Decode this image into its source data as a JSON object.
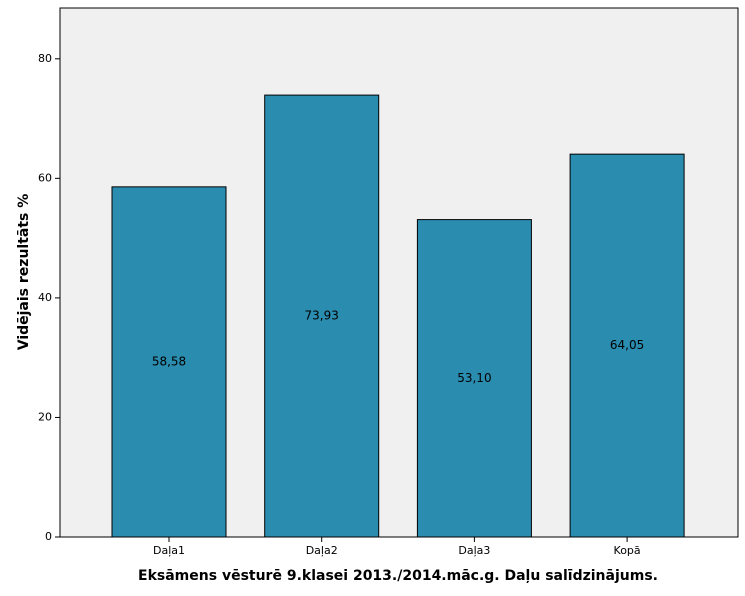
{
  "chart_data": {
    "type": "bar",
    "categories": [
      "Daļa1",
      "Daļa2",
      "Daļa3",
      "Kopā"
    ],
    "values": [
      58.58,
      73.93,
      53.1,
      64.05
    ],
    "value_labels": [
      "58,58",
      "73,93",
      "53,10",
      "64,05"
    ],
    "color": "#2a8caf",
    "ylim": [
      0,
      88.5
    ],
    "yticks": [
      0,
      20,
      40,
      60,
      80
    ],
    "xlabel": "Eksāmens vēsturē 9.klasei 2013./2014.māc.g. Daļu salīdzinājums.",
    "ylabel": "Vidējais rezultāts %"
  }
}
